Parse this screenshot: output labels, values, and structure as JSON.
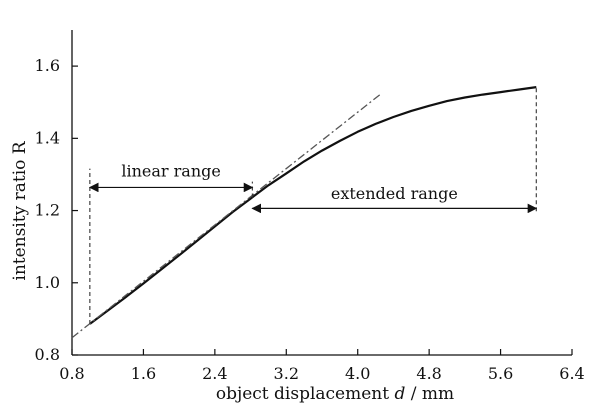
{
  "chart_data": {
    "type": "line",
    "xlabel_prefix": "object displacement ",
    "xlabel_var": "d",
    "xlabel_suffix": " / mm",
    "ylabel": "intensity ratio R",
    "xlim": [
      0.8,
      6.4
    ],
    "ylim": [
      0.8,
      1.7
    ],
    "xticks": [
      0.8,
      1.6,
      2.4,
      3.2,
      4.0,
      4.8,
      5.6,
      6.4
    ],
    "xtick_labels": [
      "0.8",
      "1.6",
      "2.4",
      "3.2",
      "4.0",
      "4.8",
      "5.6",
      "6.4"
    ],
    "yticks": [
      0.8,
      1.0,
      1.2,
      1.4,
      1.6
    ],
    "ytick_labels": [
      "0.8",
      "1.0",
      "1.2",
      "1.4",
      "1.6"
    ],
    "grid": false,
    "series": [
      {
        "style": "solid",
        "color": "#111111",
        "x": [
          1.0,
          1.2,
          1.4,
          1.6,
          1.8,
          2.0,
          2.2,
          2.4,
          2.6,
          2.8,
          3.0,
          3.2,
          3.4,
          3.6,
          3.8,
          4.0,
          4.2,
          4.4,
          4.6,
          4.8,
          5.0,
          5.2,
          5.4,
          5.6,
          5.8,
          6.0
        ],
        "y": [
          0.886,
          0.923,
          0.96,
          0.998,
          1.037,
          1.076,
          1.116,
          1.156,
          1.196,
          1.233,
          1.27,
          1.303,
          1.336,
          1.366,
          1.393,
          1.418,
          1.44,
          1.459,
          1.476,
          1.49,
          1.503,
          1.513,
          1.521,
          1.528,
          1.535,
          1.542
        ]
      },
      {
        "style": "dash-dot",
        "color": "#555555",
        "x": [
          0.8,
          4.25
        ],
        "y": [
          0.848,
          1.521
        ]
      }
    ],
    "annotations": [
      {
        "text": "linear range",
        "arrow": "double",
        "x_start": 1.0,
        "x_end": 2.82,
        "y": 1.264,
        "label_y": 1.295,
        "bounds": [
          {
            "x": 1.0,
            "y_from": 0.886,
            "y_to": 1.316
          },
          {
            "x": 2.82,
            "y_from": 1.236,
            "y_to": 1.28
          }
        ]
      },
      {
        "text": "extended range",
        "arrow": "double",
        "x_start": 2.82,
        "x_end": 6.0,
        "y": 1.206,
        "label_y": 1.232,
        "bounds": [
          {
            "x": 6.0,
            "y_from": 1.198,
            "y_to": 1.542
          }
        ]
      }
    ]
  }
}
